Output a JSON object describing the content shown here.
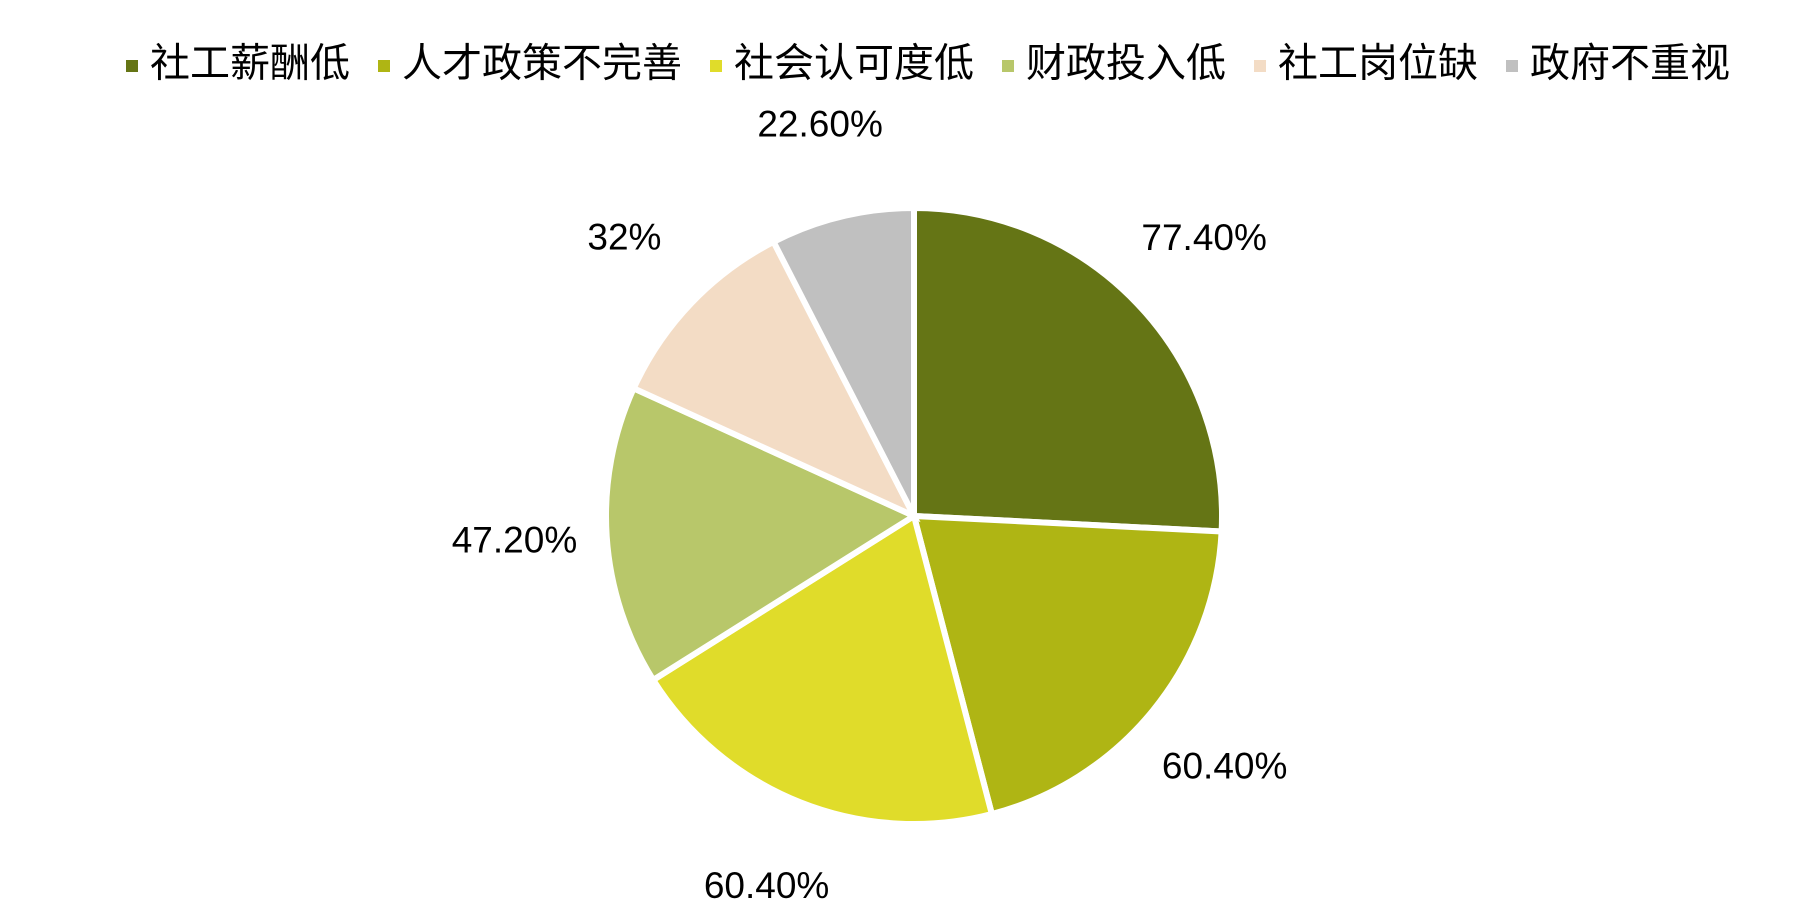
{
  "chart_data": {
    "type": "pie",
    "categories": [
      "社工薪酬低",
      "人才政策不完善",
      "社会认可度低",
      "财政投入低",
      "社工岗位缺",
      "政府不重视"
    ],
    "values": [
      77.4,
      60.4,
      60.4,
      47.2,
      32,
      22.6
    ],
    "value_labels": [
      "77.40%",
      "60.40%",
      "60.40%",
      "47.20%",
      "32%",
      "22.60%"
    ],
    "colors": [
      "#657515",
      "#afb514",
      "#e0dc2a",
      "#b8c76a",
      "#f3dcc5",
      "#c0c0c0"
    ],
    "legend": "top"
  }
}
